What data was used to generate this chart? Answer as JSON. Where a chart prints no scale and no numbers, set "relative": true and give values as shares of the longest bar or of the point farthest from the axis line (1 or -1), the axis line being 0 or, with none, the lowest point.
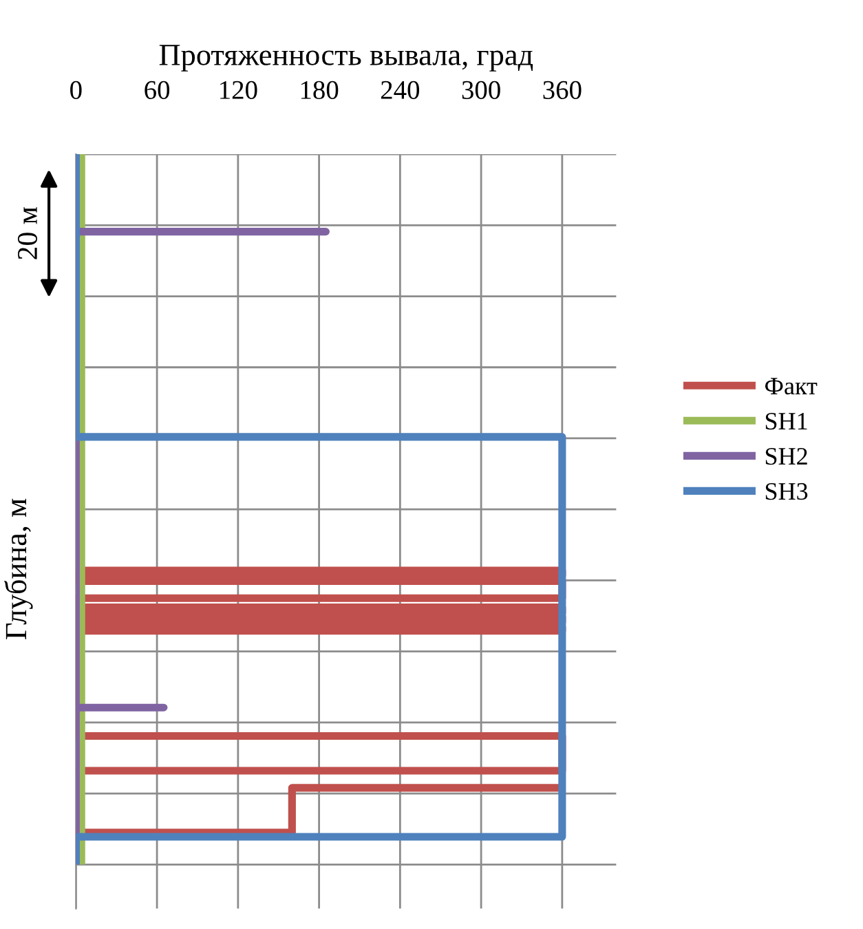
{
  "chart_data": {
    "type": "line",
    "relative": true,
    "xlabel": "Протяженность вывала, град",
    "ylabel": "Глубина, м",
    "xlim": [
      0,
      400
    ],
    "xticks": [
      0,
      60,
      120,
      180,
      240,
      300,
      360
    ],
    "grid": true,
    "legend": "right",
    "marker": "none",
    "line_style": "solid",
    "annotations": [
      "20 м"
    ],
    "series": [
      {
        "name": "Факт",
        "color": "#c0504d",
        "x": [
          0,
          360,
          360,
          0,
          0,
          360,
          360,
          0,
          0,
          360,
          360,
          0,
          0,
          360,
          360,
          0,
          0,
          360,
          360,
          0,
          0,
          360,
          360,
          0,
          null,
          360,
          160,
          160,
          0
        ],
        "values": [
          -0.586,
          -0.586,
          -0.593,
          -0.593,
          -0.601,
          -0.601,
          -0.625,
          -0.625,
          -0.638,
          -0.638,
          -0.646,
          -0.646,
          -0.651,
          -0.651,
          -0.659,
          -0.659,
          -0.666,
          -0.666,
          -0.671,
          -0.671,
          -0.819,
          -0.819,
          -0.868,
          -0.868,
          null,
          -0.892,
          -0.892,
          -0.955,
          -0.955
        ]
      },
      {
        "name": "SH1",
        "color": "#9bbb59",
        "x": [
          4,
          4
        ],
        "values": [
          0,
          -1
        ]
      },
      {
        "name": "SH2",
        "color": "#8064a2",
        "x": [
          0,
          0,
          185,
          0,
          0,
          65,
          0,
          0
        ],
        "values": [
          0,
          -0.109,
          -0.109,
          -0.109,
          -0.779,
          -0.779,
          -0.779,
          -1
        ]
      },
      {
        "name": "SH3",
        "color": "#4f81bd",
        "x": [
          0,
          0,
          360,
          360,
          0,
          0
        ],
        "values": [
          0,
          -0.398,
          -0.398,
          -0.961,
          -0.961,
          -1
        ]
      }
    ]
  }
}
